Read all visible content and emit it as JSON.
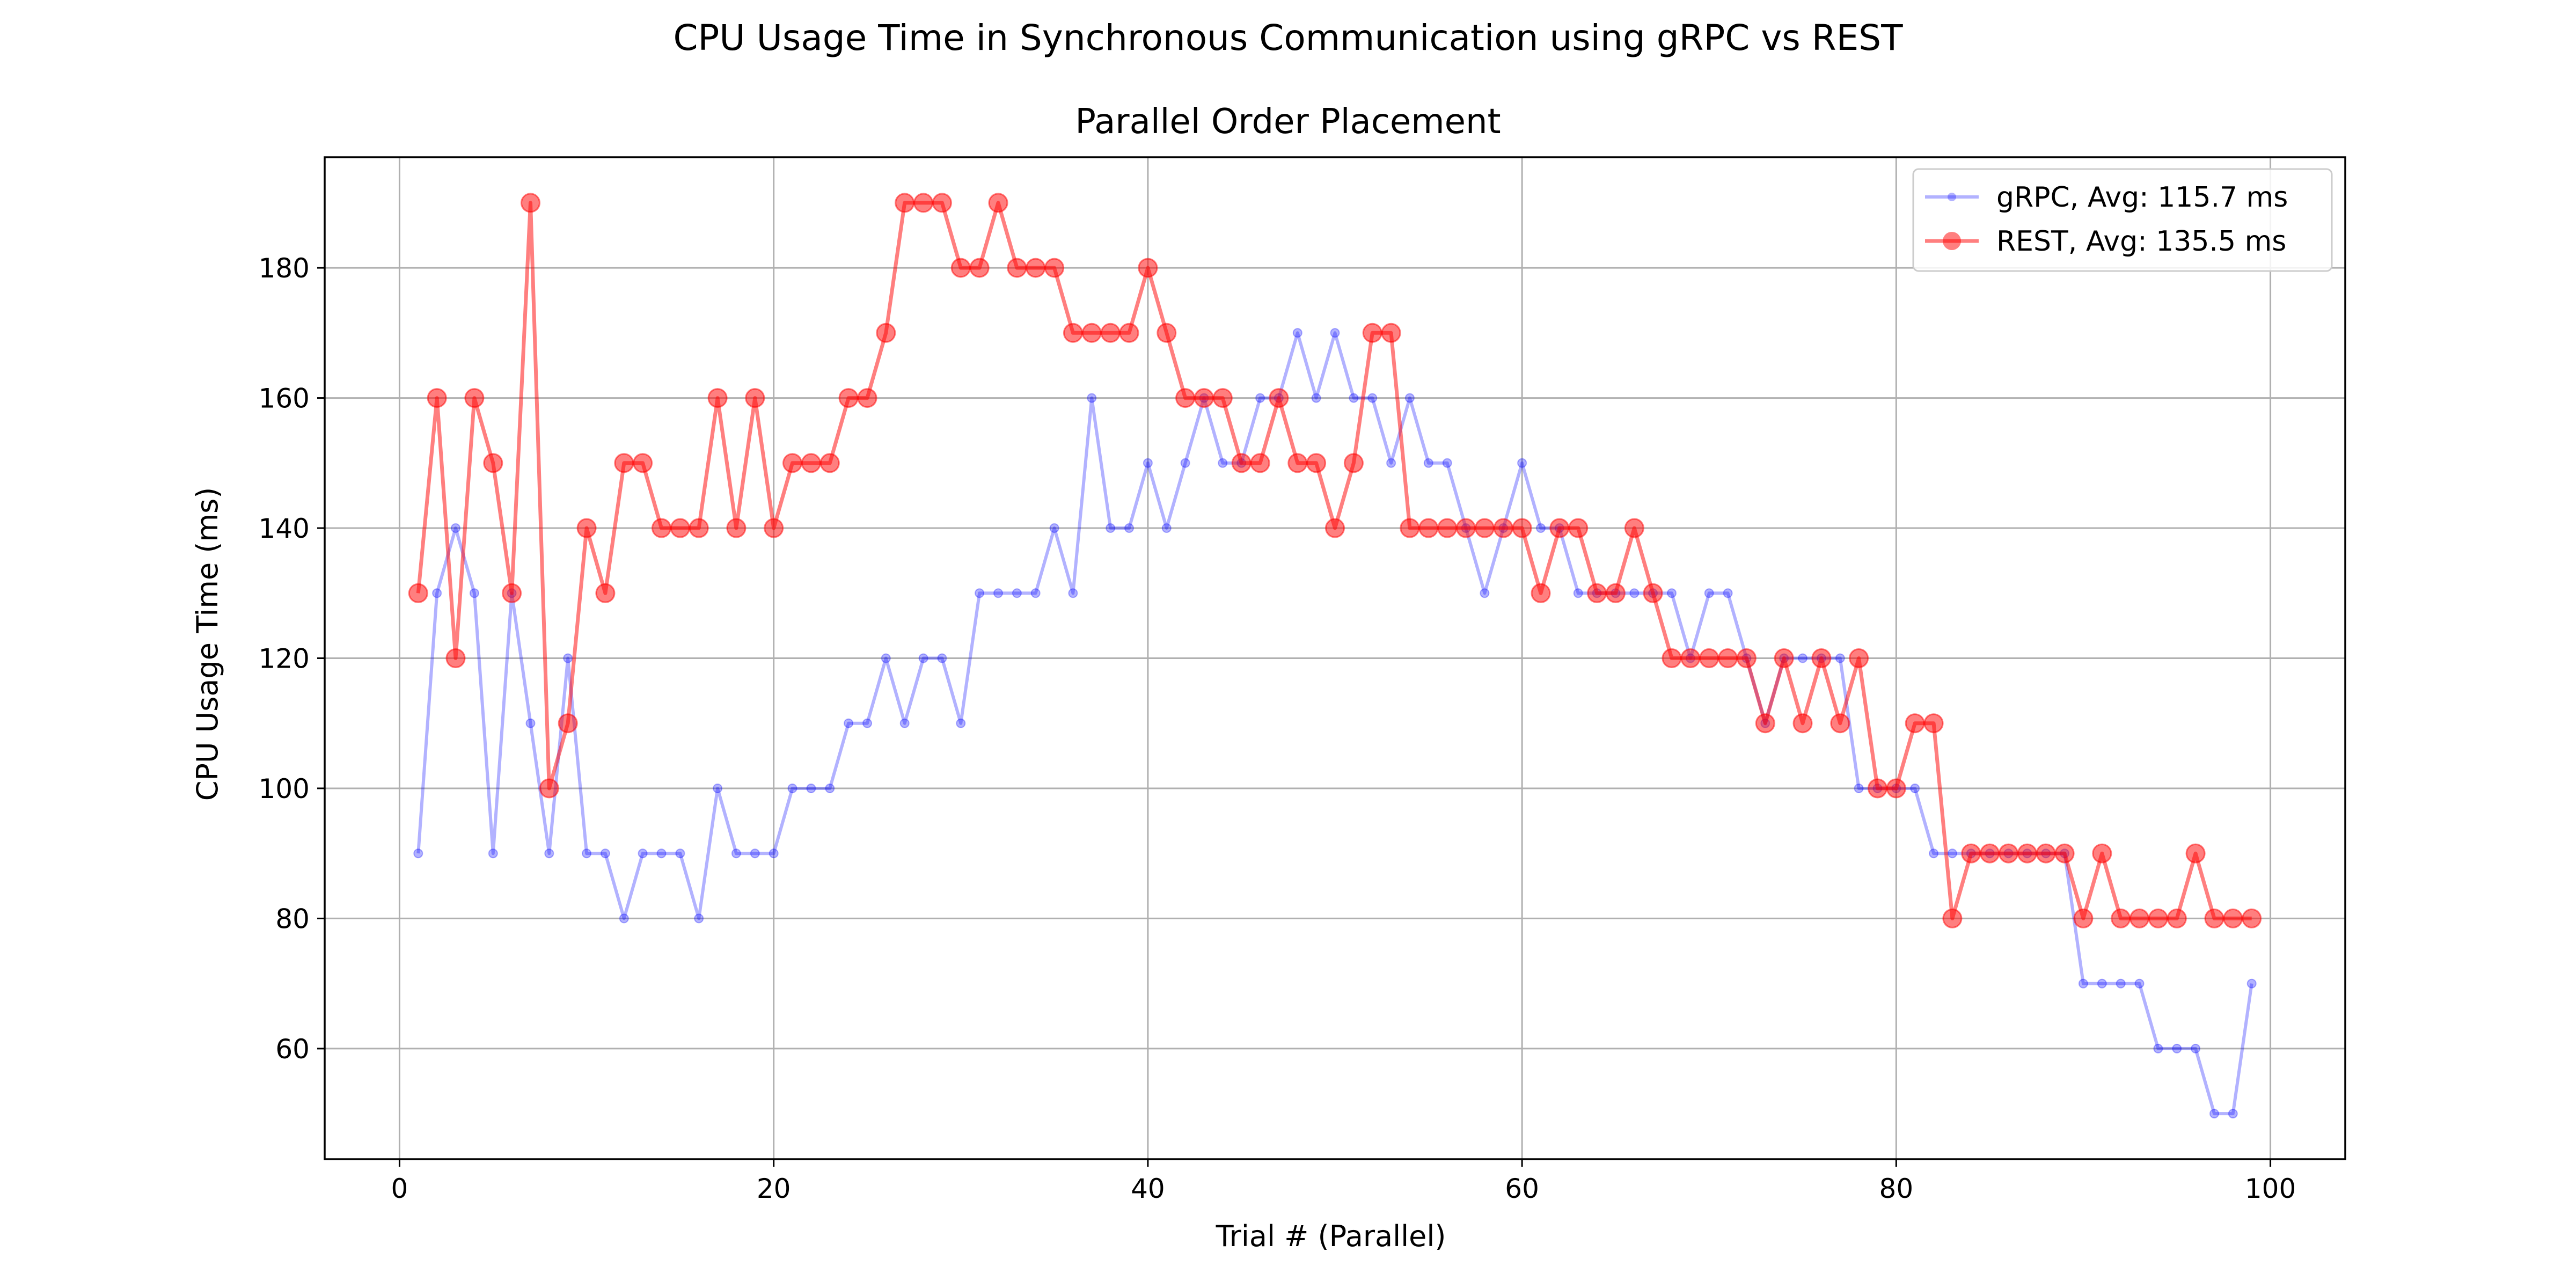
{
  "figure": {
    "suptitle": "CPU Usage Time in Synchronous Communication using gRPC vs REST"
  },
  "chart_data": {
    "type": "line",
    "title": "Parallel Order Placement",
    "xlabel": "Trial # (Parallel)",
    "ylabel": "CPU Usage Time (ms)",
    "xlim": [
      -4,
      104
    ],
    "ylim": [
      43,
      197
    ],
    "xticks": [
      0,
      20,
      40,
      60,
      80,
      100
    ],
    "yticks": [
      60,
      80,
      100,
      120,
      140,
      160,
      180
    ],
    "grid": true,
    "legend_position": "top-right",
    "x": [
      1,
      2,
      3,
      4,
      5,
      6,
      7,
      8,
      9,
      10,
      11,
      12,
      13,
      14,
      15,
      16,
      17,
      18,
      19,
      20,
      21,
      22,
      23,
      24,
      25,
      26,
      27,
      28,
      29,
      30,
      31,
      32,
      33,
      34,
      35,
      36,
      37,
      38,
      39,
      40,
      41,
      42,
      43,
      44,
      45,
      46,
      47,
      48,
      49,
      50,
      51,
      52,
      53,
      54,
      55,
      56,
      57,
      58,
      59,
      60,
      61,
      62,
      63,
      64,
      65,
      66,
      67,
      68,
      69,
      70,
      71,
      72,
      73,
      74,
      75,
      76,
      77,
      78,
      79,
      80,
      81,
      82,
      83,
      84,
      85,
      86,
      87,
      88,
      89,
      90,
      91,
      92,
      93,
      94,
      95,
      96,
      97,
      98,
      99
    ],
    "series": [
      {
        "name": "gRPC, Avg: 115.7 ms",
        "color": "#0000ff",
        "marker": "small-dot",
        "alpha": 0.3,
        "values": [
          90,
          130,
          140,
          130,
          90,
          130,
          110,
          90,
          120,
          90,
          90,
          80,
          90,
          90,
          90,
          80,
          100,
          90,
          90,
          90,
          100,
          100,
          100,
          110,
          110,
          120,
          110,
          120,
          120,
          110,
          130,
          130,
          130,
          130,
          140,
          130,
          160,
          140,
          140,
          150,
          140,
          150,
          160,
          150,
          150,
          160,
          160,
          170,
          160,
          170,
          160,
          160,
          150,
          160,
          150,
          150,
          140,
          130,
          140,
          150,
          140,
          140,
          130,
          130,
          130,
          130,
          130,
          130,
          120,
          130,
          130,
          120,
          110,
          120,
          120,
          120,
          120,
          100,
          100,
          100,
          100,
          90,
          90,
          90,
          90,
          90,
          90,
          90,
          90,
          70,
          70,
          70,
          70,
          60,
          60,
          60,
          50,
          50,
          70
        ]
      },
      {
        "name": "REST, Avg: 135.5 ms",
        "color": "#ff0000",
        "marker": "large-circle",
        "alpha": 0.5,
        "values": [
          130,
          160,
          120,
          160,
          150,
          130,
          190,
          100,
          110,
          140,
          130,
          150,
          150,
          140,
          140,
          140,
          160,
          140,
          160,
          140,
          150,
          150,
          150,
          160,
          160,
          170,
          190,
          190,
          190,
          180,
          180,
          190,
          180,
          180,
          180,
          170,
          170,
          170,
          170,
          180,
          170,
          160,
          160,
          160,
          150,
          150,
          160,
          150,
          150,
          140,
          150,
          170,
          170,
          140,
          140,
          140,
          140,
          140,
          140,
          140,
          130,
          140,
          140,
          130,
          130,
          140,
          130,
          120,
          120,
          120,
          120,
          120,
          110,
          120,
          110,
          120,
          110,
          120,
          100,
          100,
          110,
          110,
          80,
          90,
          90,
          90,
          90,
          90,
          90,
          80,
          90,
          80,
          80,
          80,
          80,
          90,
          80,
          80,
          80
        ]
      }
    ]
  }
}
